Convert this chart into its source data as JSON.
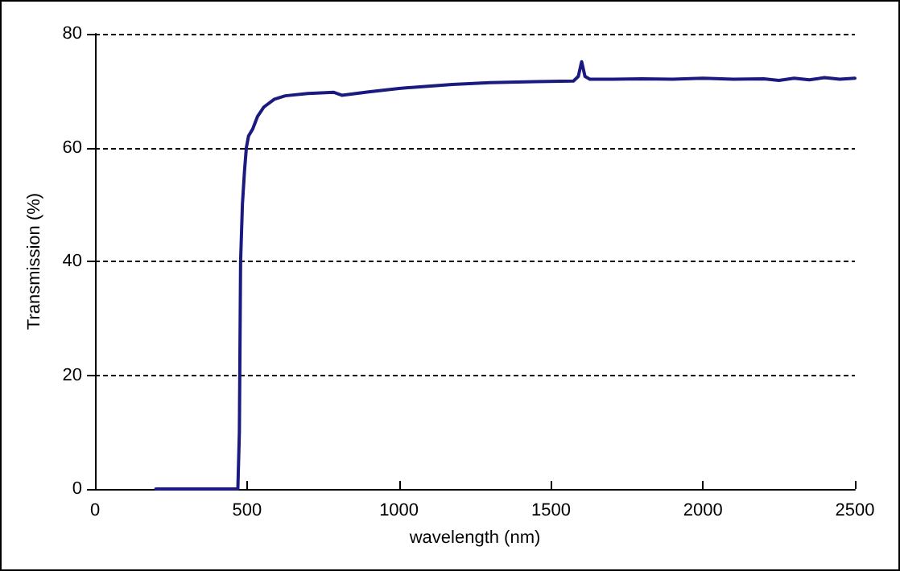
{
  "chart_data": {
    "type": "line",
    "xlabel": "wavelength (nm)",
    "ylabel": "Transmission (%)",
    "xlim": [
      0,
      2500
    ],
    "xticks": [
      0,
      500,
      1000,
      1500,
      2000,
      2500
    ],
    "ylim": [
      0,
      80
    ],
    "yticks": [
      0,
      20,
      40,
      60,
      80
    ],
    "grid": "y",
    "marker": "none",
    "line_style": "solid",
    "series": [
      {
        "color": "#1a1a80",
        "x": [
          200,
          470,
          475,
          479,
          485,
          492,
          498,
          505,
          519,
          535,
          555,
          590,
          626,
          700,
          786,
          812,
          900,
          1000,
          1176,
          1300,
          1450,
          1574,
          1590,
          1601,
          1612,
          1628,
          1700,
          1800,
          1900,
          2000,
          2100,
          2200,
          2250,
          2300,
          2350,
          2400,
          2450,
          2500
        ],
        "values": [
          0,
          0,
          10,
          40,
          50,
          56,
          60,
          62,
          63.3,
          65.5,
          67.1,
          68.5,
          69.1,
          69.5,
          69.7,
          69.2,
          69.8,
          70.4,
          71.1,
          71.4,
          71.6,
          71.7,
          72.5,
          75.1,
          72.5,
          72,
          72,
          72.1,
          72,
          72.2,
          72,
          72.1,
          71.8,
          72.2,
          71.9,
          72.3,
          72,
          72.2
        ]
      }
    ]
  }
}
